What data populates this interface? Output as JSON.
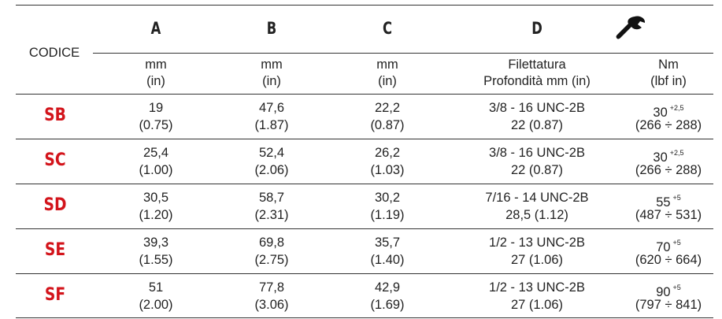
{
  "header": {
    "code_label": "CODICE",
    "col_a": "A",
    "col_b": "B",
    "col_c": "C",
    "col_d": "D",
    "torque_icon": "wrench-icon",
    "units": {
      "a": [
        "mm",
        "(in)"
      ],
      "b": [
        "mm",
        "(in)"
      ],
      "c": [
        "mm",
        "(in)"
      ],
      "d": [
        "Filettatura",
        "Profondità mm (in)"
      ],
      "torque": [
        "Nm",
        "(lbf in)"
      ]
    }
  },
  "colors": {
    "code": "#d3141b",
    "rule": "#333333"
  },
  "rows": [
    {
      "code": "SB",
      "a": [
        "19",
        "(0.75)"
      ],
      "b": [
        "47,6",
        "(1.87)"
      ],
      "c": [
        "22,2",
        "(0.87)"
      ],
      "d": [
        "3/8 - 16 UNC-2B",
        "22 (0.87)"
      ],
      "torque": "30",
      "tol": "+2,5",
      "range": "(266 ÷ 288)"
    },
    {
      "code": "SC",
      "a": [
        "25,4",
        "(1.00)"
      ],
      "b": [
        "52,4",
        "(2.06)"
      ],
      "c": [
        "26,2",
        "(1.03)"
      ],
      "d": [
        "3/8 - 16 UNC-2B",
        "22 (0.87)"
      ],
      "torque": "30",
      "tol": "+2,5",
      "range": "(266 ÷ 288)"
    },
    {
      "code": "SD",
      "a": [
        "30,5",
        "(1.20)"
      ],
      "b": [
        "58,7",
        "(2.31)"
      ],
      "c": [
        "30,2",
        "(1.19)"
      ],
      "d": [
        "7/16 - 14 UNC-2B",
        "28,5 (1.12)"
      ],
      "torque": "55",
      "tol": "+5",
      "range": "(487 ÷ 531)"
    },
    {
      "code": "SE",
      "a": [
        "39,3",
        "(1.55)"
      ],
      "b": [
        "69,8",
        "(2.75)"
      ],
      "c": [
        "35,7",
        "(1.40)"
      ],
      "d": [
        "1/2 - 13 UNC-2B",
        "27 (1.06)"
      ],
      "torque": "70",
      "tol": "+5",
      "range": "(620 ÷ 664)"
    },
    {
      "code": "SF",
      "a": [
        "51",
        "(2.00)"
      ],
      "b": [
        "77,8",
        "(3.06)"
      ],
      "c": [
        "42,9",
        "(1.69)"
      ],
      "d": [
        "1/2 - 13 UNC-2B",
        "27 (1.06)"
      ],
      "torque": "90",
      "tol": "+5",
      "range": "(797 ÷ 841)"
    }
  ]
}
